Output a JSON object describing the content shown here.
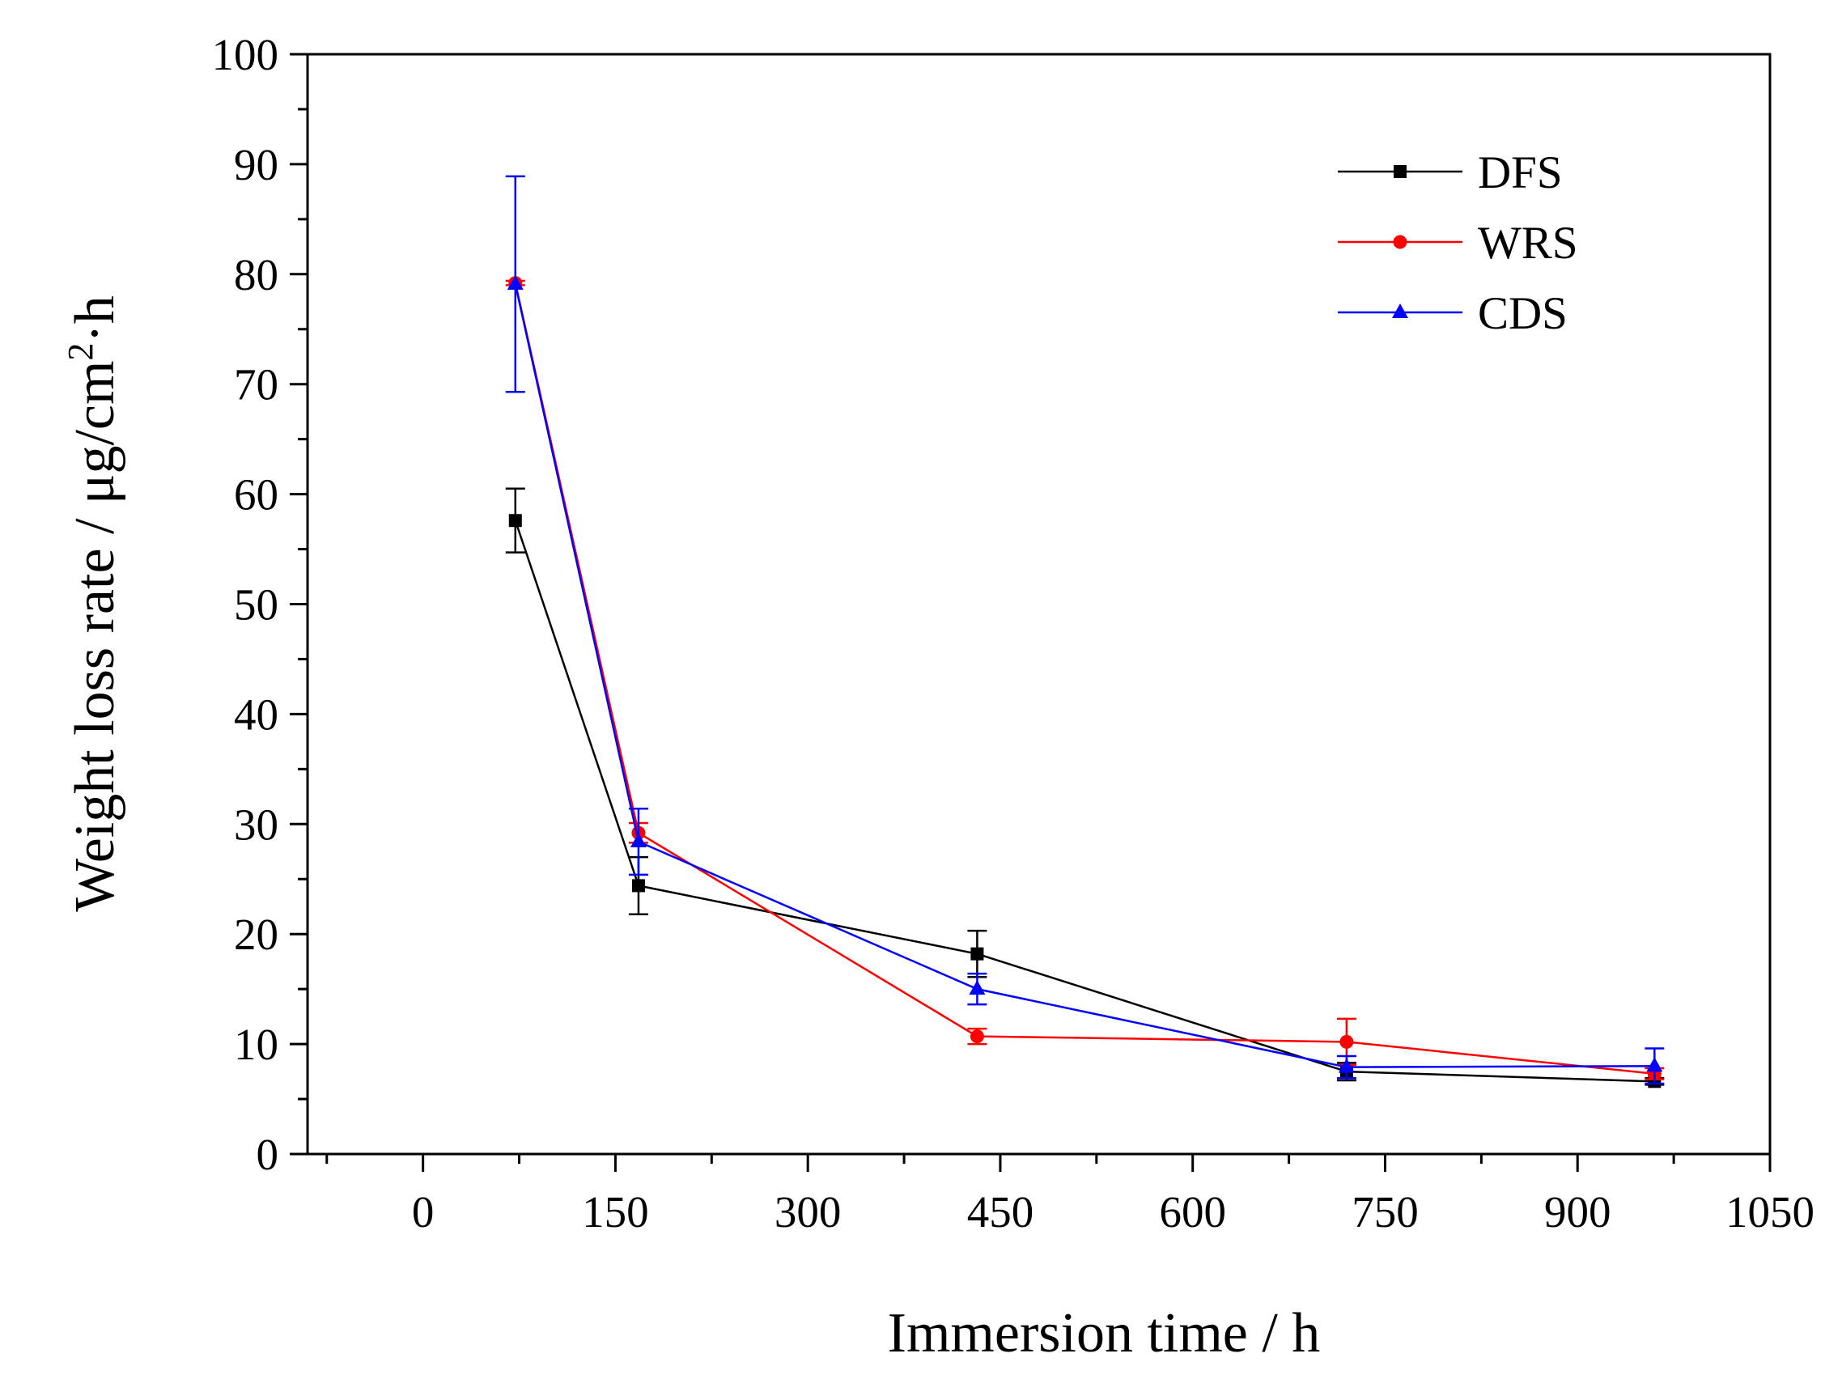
{
  "chart_data": {
    "type": "line",
    "xlabel": "Immersion time / h",
    "ylabel_main": "Weight loss rate / μg/cm",
    "ylabel_sup": "2",
    "ylabel_tail": "·h",
    "xlim": [
      -90,
      1050
    ],
    "ylim": [
      0,
      100
    ],
    "x_ticks": [
      0,
      150,
      300,
      450,
      600,
      750,
      900,
      1050
    ],
    "x_tick_labels": [
      "0",
      "150",
      "300",
      "450",
      "600",
      "750",
      "900",
      "1050"
    ],
    "y_ticks": [
      0,
      10,
      20,
      30,
      40,
      50,
      60,
      70,
      80,
      90,
      100
    ],
    "y_tick_labels": [
      "0",
      "10",
      "20",
      "30",
      "40",
      "50",
      "60",
      "70",
      "80",
      "90",
      "100"
    ],
    "grid": false,
    "legend_position": "top-right",
    "series": [
      {
        "name": "DFS",
        "color": "#000000",
        "marker": "square",
        "x": [
          72,
          168,
          432,
          720,
          960
        ],
        "y": [
          57.6,
          24.4,
          18.2,
          7.5,
          6.6
        ],
        "err": [
          2.9,
          2.6,
          2.1,
          0.8,
          0.3
        ]
      },
      {
        "name": "WRS",
        "color": "#ff0000",
        "marker": "circle",
        "x": [
          72,
          168,
          432,
          720,
          960
        ],
        "y": [
          79.2,
          29.2,
          10.7,
          10.2,
          7.3
        ],
        "err": [
          0.2,
          0.9,
          0.7,
          2.1,
          0.5
        ]
      },
      {
        "name": "CDS",
        "color": "#0000ff",
        "marker": "triangle",
        "x": [
          72,
          168,
          432,
          720,
          960
        ],
        "y": [
          79.1,
          28.4,
          15.0,
          7.9,
          8.0
        ],
        "err": [
          9.8,
          3.0,
          1.4,
          1.0,
          1.6
        ]
      }
    ]
  }
}
